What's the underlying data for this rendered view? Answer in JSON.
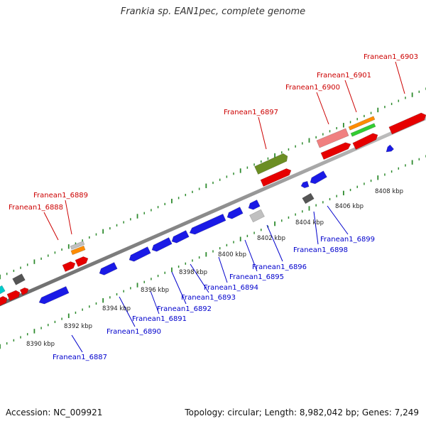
{
  "title": "Frankia sp. EAN1pec, complete genome",
  "footer": {
    "accession": "Accession: NC_009921",
    "info": "Topology: circular; Length: 8,982,042 bp; Genes: 7,249"
  },
  "colors": {
    "backbone": "#8c8c8c",
    "tick": "#2e8b2e",
    "forward_label": "#cc0000",
    "reverse_label": "#0000cc"
  },
  "ruler": [
    "8390 kbp",
    "8392 kbp",
    "8394 kbp",
    "8396 kbp",
    "8398 kbp",
    "8400 kbp",
    "8402 kbp",
    "8404 kbp",
    "8406 kbp",
    "8408 kbp"
  ],
  "forward_labels": [
    "Franean1_6888",
    "Franean1_6889",
    "Franean1_6897",
    "Franean1_6900",
    "Franean1_6901",
    "Franean1_6903"
  ],
  "reverse_labels": [
    "Franean1_6887",
    "Franean1_6890",
    "Franean1_6891",
    "Franean1_6892",
    "Franean1_6893",
    "Franean1_6894",
    "Franean1_6895",
    "Franean1_6896",
    "Franean1_6898",
    "Franean1_6899"
  ]
}
